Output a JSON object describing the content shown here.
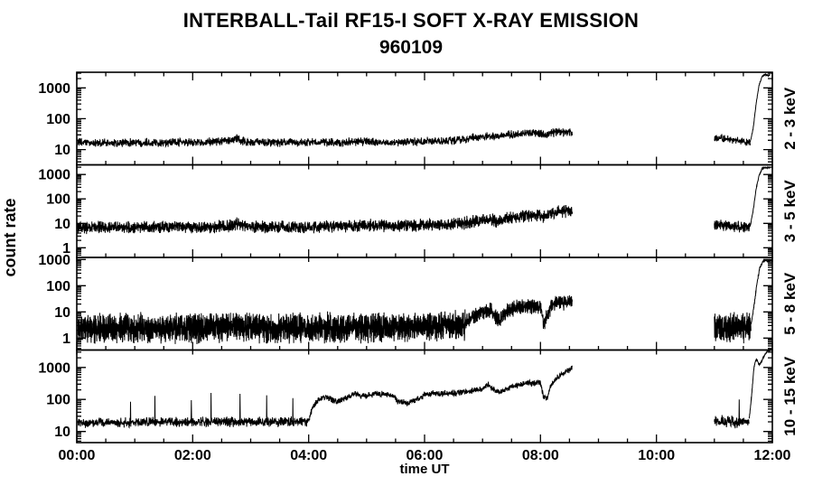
{
  "chart_data": {
    "type": "line",
    "title": "INTERBALL-Tail RF15-I SOFT X-RAY EMISSION",
    "subtitle": "960109",
    "xlabel": "time UT",
    "ylabel": "count rate",
    "background_color": "#ffffff",
    "line_color": "#000000",
    "axis_color": "#000000",
    "grid": false,
    "legend": "none",
    "x_range_hours": [
      0,
      12
    ],
    "x_tick_positions_hours": [
      0,
      2,
      4,
      6,
      8,
      10,
      12
    ],
    "x_tick_labels": [
      "00:00",
      "02:00",
      "04:00",
      "06:00",
      "08:00",
      "10:00",
      "12:00"
    ],
    "x_major_tick_hours": 2,
    "x_minor_tick_hours": 0.5,
    "data_gap_hours": [
      8.55,
      11.0
    ],
    "panels": [
      {
        "label": "2 - 3 keV",
        "ylim": [
          3.2,
          3200
        ],
        "yticks": [
          10,
          100,
          1000
        ],
        "segments": [
          {
            "noise_dex": 0.1,
            "step_hours": 0.004,
            "anchors": [
              [
                0,
                17
              ],
              [
                0.5,
                16
              ],
              [
                1,
                17
              ],
              [
                1.5,
                17
              ],
              [
                2,
                17
              ],
              [
                2.5,
                18
              ],
              [
                2.65,
                19
              ],
              [
                2.75,
                24
              ],
              [
                2.85,
                19
              ],
              [
                3,
                17
              ],
              [
                3.5,
                17
              ],
              [
                4,
                17
              ],
              [
                4.5,
                17
              ],
              [
                5,
                18
              ],
              [
                5.5,
                17
              ],
              [
                6,
                18
              ],
              [
                6.4,
                19
              ],
              [
                6.7,
                22
              ],
              [
                7,
                26
              ],
              [
                7.1,
                29
              ],
              [
                7.2,
                26
              ],
              [
                7.35,
                28
              ],
              [
                7.5,
                31
              ],
              [
                7.7,
                33
              ],
              [
                7.9,
                35
              ],
              [
                8,
                33
              ],
              [
                8.05,
                29
              ],
              [
                8.15,
                34
              ],
              [
                8.3,
                37
              ],
              [
                8.45,
                36
              ],
              [
                8.55,
                38
              ]
            ]
          },
          {
            "noise_dex": 0.09,
            "step_hours": 0.004,
            "anchors": [
              [
                11.0,
                23
              ],
              [
                11.15,
                24
              ],
              [
                11.3,
                20
              ],
              [
                11.5,
                18
              ],
              [
                11.62,
                17
              ]
            ]
          },
          {
            "noise_dex": 0.02,
            "step_hours": 0.003,
            "anchors": [
              [
                11.62,
                18
              ],
              [
                11.67,
                50
              ],
              [
                11.72,
                300
              ],
              [
                11.77,
                1200
              ],
              [
                11.82,
                2300
              ],
              [
                11.87,
                2700
              ],
              [
                11.92,
                2500
              ],
              [
                11.96,
                2600
              ]
            ]
          }
        ],
        "spikes": []
      },
      {
        "label": "3 - 5 keV",
        "ylim": [
          0.4,
          2500
        ],
        "yticks": [
          1,
          10,
          100,
          1000
        ],
        "segments": [
          {
            "noise_dex": 0.18,
            "step_hours": 0.003,
            "anchors": [
              [
                0,
                6.5
              ],
              [
                0.5,
                7
              ],
              [
                1,
                7
              ],
              [
                2,
                7
              ],
              [
                2.6,
                7.5
              ],
              [
                2.75,
                10
              ],
              [
                2.9,
                7.5
              ],
              [
                3.5,
                7
              ],
              [
                4,
                7.5
              ],
              [
                4.5,
                7.5
              ],
              [
                5,
                8
              ],
              [
                5.5,
                8
              ],
              [
                6,
                8.5
              ],
              [
                6.3,
                9
              ],
              [
                6.6,
                10
              ],
              [
                6.9,
                12
              ],
              [
                7.05,
                14
              ],
              [
                7.15,
                15
              ],
              [
                7.25,
                12
              ],
              [
                7.4,
                15
              ],
              [
                7.6,
                18
              ],
              [
                7.8,
                21
              ],
              [
                7.95,
                23
              ],
              [
                8.05,
                17
              ],
              [
                8.15,
                24
              ],
              [
                8.3,
                29
              ],
              [
                8.45,
                31
              ],
              [
                8.55,
                33
              ]
            ]
          },
          {
            "noise_dex": 0.16,
            "step_hours": 0.003,
            "anchors": [
              [
                11.0,
                8
              ],
              [
                11.2,
                8.5
              ],
              [
                11.35,
                7.5
              ],
              [
                11.5,
                7
              ],
              [
                11.62,
                7.5
              ]
            ]
          },
          {
            "noise_dex": 0.03,
            "step_hours": 0.003,
            "anchors": [
              [
                11.62,
                8
              ],
              [
                11.67,
                35
              ],
              [
                11.72,
                250
              ],
              [
                11.77,
                900
              ],
              [
                11.82,
                1700
              ],
              [
                11.87,
                2000
              ],
              [
                11.92,
                1850
              ],
              [
                11.96,
                1950
              ]
            ]
          }
        ],
        "spikes": []
      },
      {
        "label": "5 - 8 keV",
        "ylim": [
          0.35,
          1200
        ],
        "yticks": [
          1,
          10,
          100,
          1000
        ],
        "segments": [
          {
            "noise_dex": 0.4,
            "step_hours": 0.002,
            "anchors": [
              [
                0,
                2.3
              ],
              [
                1,
                2.4
              ],
              [
                2,
                2.4
              ],
              [
                2.6,
                2.6
              ],
              [
                2.75,
                3.2
              ],
              [
                3,
                2.4
              ],
              [
                4,
                2.4
              ],
              [
                5,
                2.5
              ],
              [
                6,
                2.8
              ],
              [
                6.7,
                3.2
              ]
            ]
          },
          {
            "noise_dex": 0.22,
            "step_hours": 0.003,
            "anchors": [
              [
                6.7,
                4
              ],
              [
                6.9,
                8
              ],
              [
                7.05,
                11
              ],
              [
                7.15,
                12
              ],
              [
                7.2,
                6
              ],
              [
                7.3,
                5
              ],
              [
                7.45,
                12
              ],
              [
                7.6,
                15
              ],
              [
                7.75,
                16
              ],
              [
                7.9,
                16
              ],
              [
                8,
                14
              ],
              [
                8.05,
                3.5
              ],
              [
                8.1,
                6
              ],
              [
                8.2,
                20
              ],
              [
                8.3,
                24
              ],
              [
                8.45,
                23
              ],
              [
                8.55,
                26
              ]
            ]
          },
          {
            "noise_dex": 0.4,
            "step_hours": 0.002,
            "anchors": [
              [
                11.0,
                2.5
              ],
              [
                11.3,
                2.5
              ],
              [
                11.63,
                2.6
              ]
            ]
          },
          {
            "noise_dex": 0.04,
            "step_hours": 0.003,
            "anchors": [
              [
                11.63,
                3
              ],
              [
                11.68,
                15
              ],
              [
                11.73,
                100
              ],
              [
                11.78,
                450
              ],
              [
                11.83,
                800
              ],
              [
                11.88,
                950
              ],
              [
                11.93,
                880
              ],
              [
                11.96,
                920
              ]
            ]
          }
        ],
        "spikes": []
      },
      {
        "label": "10 - 15 keV",
        "ylim": [
          4.5,
          3500
        ],
        "yticks": [
          10,
          100,
          1000
        ],
        "segments": [
          {
            "noise_dex": 0.11,
            "step_hours": 0.004,
            "anchors": [
              [
                0,
                19
              ],
              [
                0.5,
                19
              ],
              [
                1,
                19
              ],
              [
                1.5,
                20
              ],
              [
                2,
                20
              ],
              [
                2.5,
                20
              ],
              [
                3,
                20
              ],
              [
                3.5,
                20
              ],
              [
                4,
                21
              ]
            ]
          },
          {
            "noise_dex": 0.07,
            "step_hours": 0.004,
            "anchors": [
              [
                4,
                22
              ],
              [
                4.05,
                45
              ],
              [
                4.12,
                80
              ],
              [
                4.2,
                105
              ],
              [
                4.3,
                120
              ],
              [
                4.4,
                95
              ],
              [
                4.5,
                85
              ],
              [
                4.6,
                105
              ],
              [
                4.7,
                125
              ],
              [
                4.8,
                150
              ],
              [
                4.9,
                125
              ],
              [
                5,
                130
              ],
              [
                5.15,
                145
              ],
              [
                5.3,
                150
              ],
              [
                5.45,
                130
              ],
              [
                5.55,
                85
              ],
              [
                5.7,
                78
              ],
              [
                5.85,
                95
              ],
              [
                6,
                140
              ],
              [
                6.15,
                160
              ],
              [
                6.3,
                150
              ],
              [
                6.5,
                160
              ],
              [
                6.7,
                175
              ],
              [
                6.9,
                195
              ],
              [
                7,
                210
              ],
              [
                7.1,
                290
              ],
              [
                7.2,
                190
              ],
              [
                7.3,
                175
              ],
              [
                7.45,
                230
              ],
              [
                7.6,
                280
              ],
              [
                7.7,
                310
              ],
              [
                7.8,
                320
              ],
              [
                7.9,
                330
              ],
              [
                8,
                340
              ],
              [
                8.05,
                130
              ],
              [
                8.12,
                110
              ],
              [
                8.18,
                280
              ],
              [
                8.25,
                420
              ],
              [
                8.35,
                550
              ],
              [
                8.45,
                750
              ],
              [
                8.55,
                1000
              ]
            ]
          },
          {
            "noise_dex": 0.13,
            "step_hours": 0.004,
            "anchors": [
              [
                11.0,
                20
              ],
              [
                11.2,
                21
              ],
              [
                11.4,
                20
              ],
              [
                11.6,
                21
              ]
            ]
          },
          {
            "noise_dex": 0.03,
            "step_hours": 0.003,
            "anchors": [
              [
                11.6,
                24
              ],
              [
                11.64,
                120
              ],
              [
                11.68,
                900
              ],
              [
                11.71,
                1600
              ],
              [
                11.74,
                1700
              ],
              [
                11.77,
                1200
              ],
              [
                11.8,
                1400
              ],
              [
                11.85,
                2200
              ],
              [
                11.9,
                3000
              ],
              [
                11.94,
                3400
              ],
              [
                11.96,
                3400
              ]
            ]
          }
        ],
        "spikes": [
          [
            0.93,
            85
          ],
          [
            1.35,
            130
          ],
          [
            1.98,
            95
          ],
          [
            2.32,
            160
          ],
          [
            2.82,
            150
          ],
          [
            3.28,
            135
          ],
          [
            3.73,
            110
          ],
          [
            11.43,
            100
          ]
        ]
      }
    ]
  }
}
